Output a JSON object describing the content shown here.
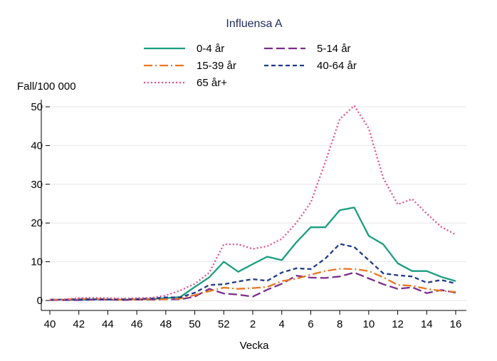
{
  "chart_data": {
    "type": "line",
    "title": "Influensa A",
    "xlabel": "Vecka",
    "ylabel": "Fall/100 000",
    "ylim": [
      0,
      52
    ],
    "yticks": [
      0,
      10,
      20,
      30,
      40,
      50
    ],
    "x": [
      "40",
      "41",
      "42",
      "43",
      "44",
      "45",
      "46",
      "47",
      "48",
      "49",
      "50",
      "51",
      "52",
      "1",
      "2",
      "3",
      "4",
      "5",
      "6",
      "7",
      "8",
      "9",
      "10",
      "11",
      "12",
      "13",
      "14",
      "15",
      "16"
    ],
    "xtick_labels": [
      "40",
      "42",
      "44",
      "46",
      "48",
      "50",
      "52",
      "2",
      "4",
      "6",
      "8",
      "10",
      "12",
      "14",
      "16"
    ],
    "grid": true,
    "legend_placement": "top",
    "series": [
      {
        "name": "0-4 år",
        "color": "#1a9e80",
        "dash": "solid",
        "values": [
          0.2,
          0.2,
          0.1,
          0.3,
          0.2,
          0.2,
          0.3,
          0.4,
          0.6,
          0.9,
          3.5,
          6,
          10,
          7.4,
          9.4,
          11.3,
          10.4,
          15,
          18.9,
          18.9,
          23.3,
          24,
          16.7,
          14.5,
          9.6,
          7.6,
          7.6,
          6.1,
          5
        ]
      },
      {
        "name": "5-14 år",
        "color": "#7b2d8e",
        "dash": "longdash",
        "values": [
          0.1,
          0.1,
          0.1,
          0.2,
          0.2,
          0.1,
          0.2,
          0.2,
          0.3,
          0.3,
          1.0,
          3.0,
          1.8,
          1.5,
          1.0,
          2.8,
          4.3,
          6.4,
          5.9,
          5.8,
          6.2,
          7.2,
          5.7,
          4.2,
          3.0,
          3.4,
          1.9,
          2.7,
          2.0
        ]
      },
      {
        "name": "15-39 år",
        "color": "#e87722",
        "dash": "dashdot",
        "values": [
          0.2,
          0.2,
          0.4,
          0.4,
          0.3,
          0.2,
          0.3,
          0.3,
          0.3,
          0.5,
          1.4,
          2.4,
          3.3,
          3.0,
          3.2,
          3.5,
          5.0,
          5.6,
          6.7,
          7.6,
          8.2,
          8.1,
          7.6,
          6.0,
          4.0,
          3.8,
          3.0,
          2.5,
          2.2
        ]
      },
      {
        "name": "40-64 år",
        "color": "#1f3c88",
        "dash": "shortdash",
        "values": [
          0.2,
          0.2,
          0.3,
          0.3,
          0.3,
          0.3,
          0.4,
          0.5,
          0.8,
          0.8,
          2.0,
          4.0,
          4.2,
          4.9,
          5.5,
          5.1,
          7.2,
          8.3,
          8.1,
          10.8,
          14.6,
          13.8,
          10.4,
          7.0,
          6.5,
          6.2,
          4.6,
          5.3,
          4.4
        ]
      },
      {
        "name": "65 år+",
        "color": "#e64f8f",
        "dash": "dotted",
        "values": [
          0.2,
          0.3,
          0.6,
          0.7,
          0.6,
          0.5,
          0.6,
          0.7,
          1.3,
          2.6,
          4.3,
          7.2,
          14.5,
          14.5,
          13.3,
          14.0,
          15.9,
          20.0,
          25.3,
          35.7,
          46.8,
          50.3,
          44.4,
          31.6,
          24.8,
          26.2,
          22.4,
          19.0,
          17.0
        ]
      }
    ]
  }
}
